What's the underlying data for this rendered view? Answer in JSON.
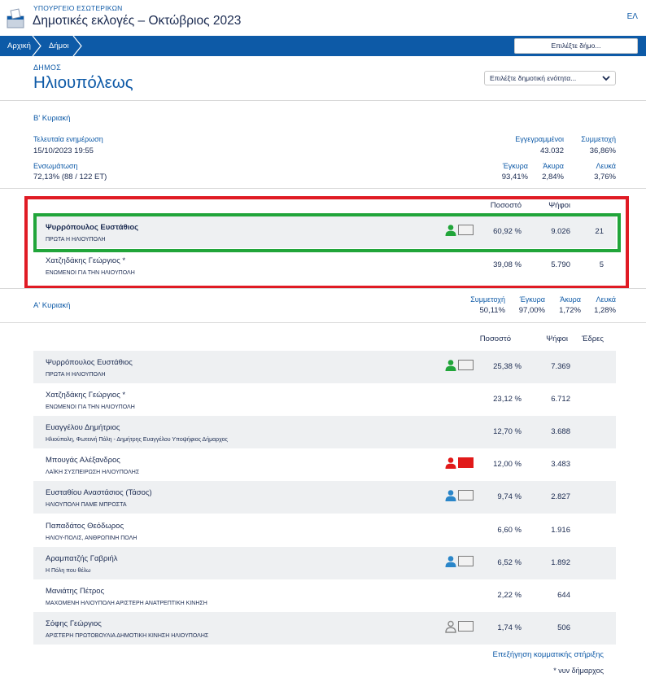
{
  "header": {
    "ministry": "ΥΠΟΥΡΓΕΙΟ ΕΣΩΤΕΡΙΚΩΝ",
    "title": "Δημοτικές εκλογές – Οκτώβριος 2023",
    "language": "ΕΛ"
  },
  "nav": {
    "crumbs": [
      "Αρχική",
      "Δήμοι"
    ],
    "select_municipality": "Επιλέξτε δήμο..."
  },
  "municipality": {
    "label": "ΔΗΜΟΣ",
    "name": "Ηλιουπόλεως",
    "unit_select": "Επιλέξτε δημοτική ενότητα..."
  },
  "round_b": {
    "title": "Β' Κυριακή",
    "last_update_label": "Τελευταία ενημέρωση",
    "last_update_value": "15/10/2023 19:55",
    "integration_label": "Ενσωμάτωση",
    "integration_value": "72,13% (88 / 122 ΕΤ)",
    "registered_label": "Εγγεγραμμένοι",
    "registered_value": "43.032",
    "turnout_label": "Συμμετοχή",
    "turnout_value": "36,86%",
    "valid_label": "Έγκυρα",
    "valid_value": "93,41%",
    "invalid_label": "Άκυρα",
    "invalid_value": "2,84%",
    "blank_label": "Λευκά",
    "blank_value": "3,76%",
    "col_percent": "Ποσοστό",
    "col_votes": "Ψήφοι",
    "candidates": [
      {
        "name": "Ψυρρόπουλος Ευστάθιος",
        "party": "ΠΡΩΤΑ Η ΗΛΙΟΥΠΟΛΗ",
        "percent": "60,92 %",
        "votes": "9.026",
        "seats": "21",
        "support": "green"
      },
      {
        "name": "Χατζηδάκης Γεώργιος *",
        "party": "ΕΝΩΜΕΝΟΙ ΓΙΑ ΤΗΝ ΗΛΙΟΥΠΟΛΗ",
        "percent": "39,08 %",
        "votes": "5.790",
        "seats": "5",
        "support": ""
      }
    ]
  },
  "round_a": {
    "title": "Α' Κυριακή",
    "turnout_label": "Συμμετοχή",
    "turnout_value": "50,11%",
    "valid_label": "Έγκυρα",
    "valid_value": "97,00%",
    "invalid_label": "Άκυρα",
    "invalid_value": "1,72%",
    "blank_label": "Λευκά",
    "blank_value": "1,28%",
    "col_percent": "Ποσοστό",
    "col_votes": "Ψήφοι",
    "col_seats": "Έδρες",
    "candidates": [
      {
        "name": "Ψυρρόπουλος Ευστάθιος",
        "party": "ΠΡΩΤΑ Η ΗΛΙΟΥΠΟΛΗ",
        "percent": "25,38 %",
        "votes": "7.369",
        "support": "green"
      },
      {
        "name": "Χατζηδάκης Γεώργιος *",
        "party": "ΕΝΩΜΕΝΟΙ ΓΙΑ ΤΗΝ ΗΛΙΟΥΠΟΛΗ",
        "percent": "23,12 %",
        "votes": "6.712",
        "support": ""
      },
      {
        "name": "Ευαγγέλου Δημήτριος",
        "party": "Ηλιούπολη, Φωτεινή Πόλη - Δημήτρης Ευαγγέλου Υποψήφιος Δήμαρχος",
        "percent": "12,70 %",
        "votes": "3.688",
        "support": ""
      },
      {
        "name": "Μπουγάς Αλέξανδρος",
        "party": "ΛΑΪΚΗ ΣΥΣΠΕΙΡΩΣΗ ΗΛΙΟΥΠΟΛΗΣ",
        "percent": "12,00 %",
        "votes": "3.483",
        "support": "red"
      },
      {
        "name": "Ευσταθίου Αναστάσιος (Τάσος)",
        "party": "ΗΛΙΟΥΠΟΛΗ ΠΑΜΕ ΜΠΡΟΣΤΑ",
        "percent": "9,74 %",
        "votes": "2.827",
        "support": "blue"
      },
      {
        "name": "Παπαδάτος Θεόδωρος",
        "party": "ΗΛΙΟΥ-ΠΟΛΙΣ, ΑΝΘΡΩΠΙΝΗ ΠΟΛΗ",
        "percent": "6,60 %",
        "votes": "1.916",
        "support": ""
      },
      {
        "name": "Αραμπατζής Γαβριήλ",
        "party": "Η Πόλη που θέλω",
        "percent": "6,52 %",
        "votes": "1.892",
        "support": "blue"
      },
      {
        "name": "Μανιάτης Πέτρος",
        "party": "ΜΑΧΟΜΕΝΗ ΗΛΙΟΥΠΟΛΗ ΑΡΙΣΤΕΡΗ ΑΝΑΤΡΕΠΤΙΚΗ ΚΙΝΗΣΗ",
        "percent": "2,22 %",
        "votes": "644",
        "support": ""
      },
      {
        "name": "Σόφης Γεώργιος",
        "party": "ΑΡΙΣΤΕΡΗ ΠΡΩΤΟΒΟΥΛΙΑ ΔΗΜΟΤΙΚΗ ΚΙΝΗΣΗ ΗΛΙΟΥΠΟΛΗΣ",
        "percent": "1,74 %",
        "votes": "506",
        "support": "grey"
      }
    ]
  },
  "footer": {
    "support_link": "Επεξήγηση κομματικής στήριξης",
    "note": "* νυν δήμαρχος"
  },
  "colors": {
    "brand_blue": "#0d5aa7",
    "support_green": "#21a53a",
    "support_red": "#e11a1a",
    "support_blue": "#2a86c9",
    "support_grey": "#8a8a8a",
    "highlight_red": "#e01b24",
    "highlight_green": "#21a53a"
  }
}
